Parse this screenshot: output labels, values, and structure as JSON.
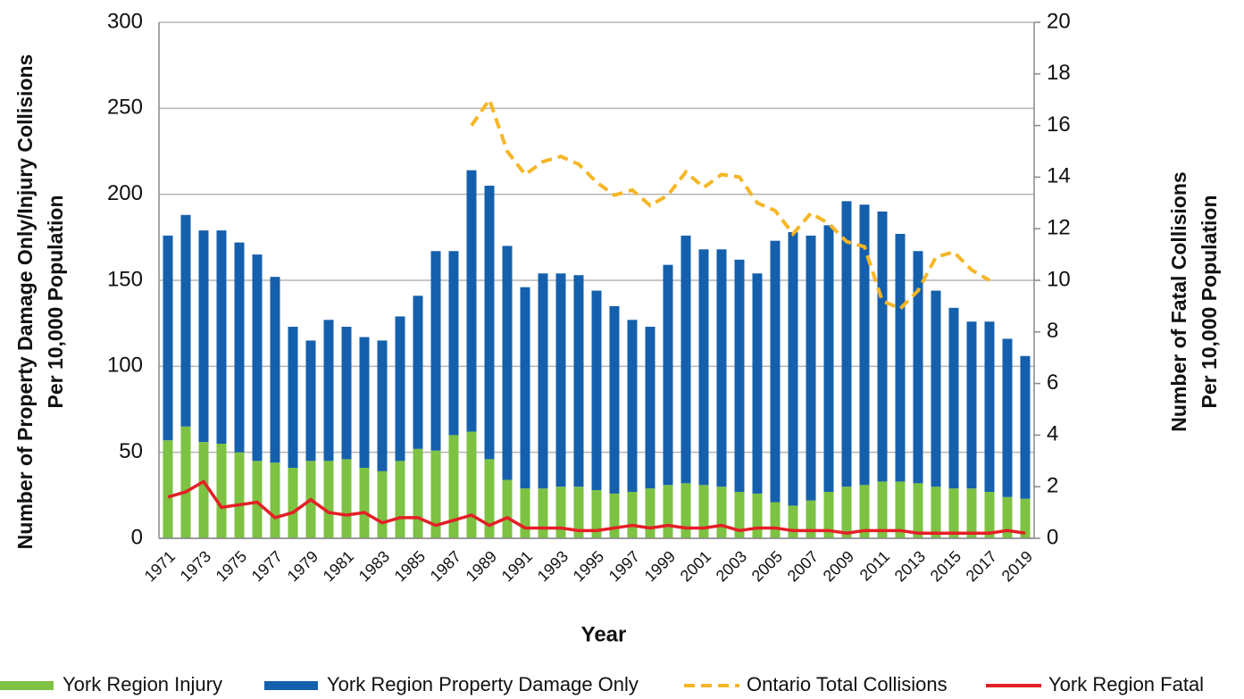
{
  "chart_data": {
    "type": "bar",
    "stacked": true,
    "x_label": "Year",
    "y_label": [
      "Number of Property Damage Only/Injury Collisions",
      "Per 10,000 Population"
    ],
    "y2_label": [
      "Number of Fatal Collisions",
      "Per 10,000 Population"
    ],
    "categories": [
      "1971",
      null,
      "1973",
      null,
      "1975",
      null,
      "1977",
      null,
      "1979",
      null,
      "1981",
      null,
      "1983",
      null,
      "1985",
      null,
      "1987",
      null,
      "1989",
      null,
      "1991",
      null,
      "1993",
      null,
      "1995",
      null,
      "1997",
      null,
      "1999",
      null,
      "2001",
      null,
      "2003",
      null,
      "2005",
      null,
      "2007",
      null,
      "2009",
      null,
      "2011",
      null,
      "2013",
      null,
      "2015",
      null,
      "2017",
      null,
      "2019"
    ],
    "series": [
      {
        "name": "York Region Injury",
        "type": "bar",
        "color": "#7dc242",
        "values": [
          57,
          65,
          56,
          55,
          50,
          45,
          44,
          41,
          45,
          45,
          46,
          41,
          39,
          45,
          52,
          51,
          60,
          62,
          46,
          34,
          29,
          29,
          30,
          30,
          28,
          26,
          27,
          29,
          31,
          32,
          31,
          30,
          27,
          26,
          21,
          19,
          22,
          27,
          30,
          31,
          33,
          33,
          32,
          30,
          29,
          29,
          27,
          24,
          23
        ]
      },
      {
        "name": "York Region Property Damage Only",
        "type": "bar",
        "color": "#1560ad",
        "values": [
          119,
          123,
          123,
          124,
          122,
          120,
          108,
          82,
          70,
          82,
          77,
          76,
          76,
          84,
          89,
          116,
          107,
          152,
          159,
          136,
          117,
          125,
          124,
          123,
          116,
          109,
          100,
          94,
          128,
          144,
          137,
          138,
          135,
          128,
          152,
          159,
          154,
          155,
          166,
          163,
          157,
          144,
          135,
          114,
          105,
          97,
          99,
          92,
          83
        ]
      },
      {
        "name": "Ontario Total Collisions",
        "type": "line",
        "axis": "y2",
        "color": "#f6b626",
        "linestyle": "dashed",
        "values": [
          null,
          null,
          null,
          null,
          null,
          null,
          null,
          null,
          null,
          null,
          null,
          null,
          null,
          null,
          null,
          null,
          null,
          16,
          17,
          15,
          14.1,
          14.6,
          14.8,
          14.5,
          13.8,
          13.3,
          13.5,
          12.9,
          13.3,
          14.2,
          13.6,
          14.1,
          14,
          13,
          12.7,
          11.8,
          12.6,
          12.2,
          11.5,
          11.3,
          9.2,
          8.9,
          9.6,
          10.9,
          11.1,
          10.4,
          10,
          null,
          null
        ]
      },
      {
        "name": "York Region Fatal",
        "type": "line",
        "axis": "y2",
        "color": "#e41f26",
        "linestyle": "solid",
        "values": [
          1.6,
          1.8,
          2.2,
          1.2,
          1.3,
          1.4,
          0.8,
          1.0,
          1.5,
          1.0,
          0.9,
          1.0,
          0.6,
          0.8,
          0.8,
          0.5,
          0.7,
          0.9,
          0.5,
          0.8,
          0.4,
          0.4,
          0.4,
          0.3,
          0.3,
          0.4,
          0.5,
          0.4,
          0.5,
          0.4,
          0.4,
          0.5,
          0.3,
          0.4,
          0.4,
          0.3,
          0.3,
          0.3,
          0.2,
          0.3,
          0.3,
          0.3,
          0.2,
          0.2,
          0.2,
          0.2,
          0.2,
          0.3,
          0.2
        ]
      }
    ],
    "ylim": [
      0,
      300
    ],
    "yticks": [
      0,
      50,
      100,
      150,
      200,
      250,
      300
    ],
    "y2lim": [
      0,
      20
    ],
    "y2ticks": [
      0,
      2,
      4,
      6,
      8,
      10,
      12,
      14,
      16,
      18,
      20
    ],
    "grid": true,
    "legend": "bottom"
  }
}
